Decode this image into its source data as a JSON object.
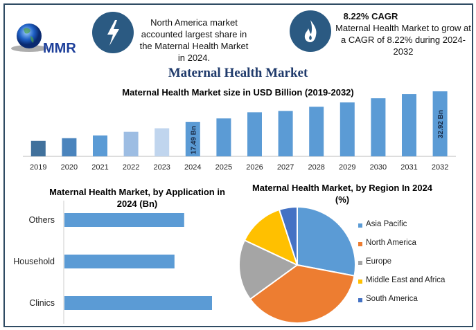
{
  "logo": {
    "text": "MMR"
  },
  "info1": {
    "icon": "lightning-icon",
    "text": "North America market accounted largest share in the Maternal Health Market in 2024."
  },
  "info2": {
    "icon": "flame-icon",
    "heading": "8.22% CAGR",
    "text": "Maternal Health Market to grow at a CAGR of 8.22% during 2024-2032"
  },
  "title": "Maternal Health Market",
  "colors": {
    "accent": "#2b5a82",
    "title": "#1f3a6b",
    "bar": "#5b9bd5"
  },
  "chart_data": [
    {
      "type": "bar",
      "title": "Maternal Health Market size in USD Billion (2019-2032)",
      "categories": [
        "2019",
        "2020",
        "2021",
        "2022",
        "2023",
        "2024",
        "2025",
        "2026",
        "2027",
        "2028",
        "2029",
        "2030",
        "2031",
        "2032"
      ],
      "values": [
        7.8,
        9.2,
        10.6,
        12.4,
        14.2,
        17.49,
        19.2,
        22.3,
        23.0,
        25.1,
        27.3,
        29.4,
        31.5,
        32.92
      ],
      "bar_colors": [
        "#41719c",
        "#4a84bd",
        "#5b9bd5",
        "#9dbde3",
        "#c0d5ee",
        "#5b9bd5",
        "#5b9bd5",
        "#5b9bd5",
        "#5b9bd5",
        "#5b9bd5",
        "#5b9bd5",
        "#5b9bd5",
        "#5b9bd5",
        "#5b9bd5"
      ],
      "data_labels": {
        "2024": "17.49 Bn",
        "2032": "32.92 Bn"
      },
      "ylim": [
        0,
        35
      ],
      "grid": false
    },
    {
      "type": "bar",
      "orientation": "horizontal",
      "title": "Maternal Health Market, by Application in 2024 (Bn)",
      "categories": [
        "Others",
        "Household",
        "Clinics"
      ],
      "values": [
        5.55,
        5.1,
        6.84
      ],
      "xlim": [
        0,
        8
      ],
      "grid": false
    },
    {
      "type": "pie",
      "title": "Maternal Health Market, by Region In 2024 (%)",
      "labels": [
        "Asia Pacific",
        "North America",
        "Europe",
        "Middle East and Africa",
        "South America"
      ],
      "values": [
        28,
        37,
        17,
        13,
        5
      ],
      "colors": [
        "#5b9bd5",
        "#ed7d31",
        "#a5a5a5",
        "#ffc000",
        "#4472c4"
      ],
      "legend": "right"
    }
  ]
}
